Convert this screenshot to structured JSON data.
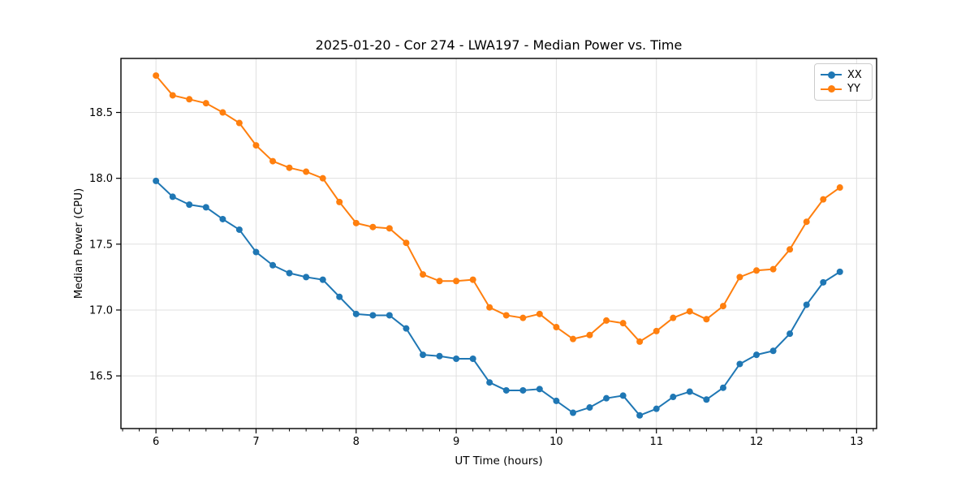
{
  "chart_data": {
    "type": "line",
    "title": "2025-01-20 - Cor 274 - LWA197 - Median Power vs. Time",
    "xlabel": "UT Time (hours)",
    "ylabel": "Median Power (CPU)",
    "xlim": [
      5.65,
      13.2
    ],
    "ylim": [
      16.1,
      18.91
    ],
    "x_ticks": [
      6,
      7,
      8,
      9,
      10,
      11,
      12,
      13
    ],
    "x_tick_labels": [
      "6",
      "7",
      "8",
      "9",
      "10",
      "11",
      "12",
      "13"
    ],
    "y_ticks": [
      16.5,
      17.0,
      17.5,
      18.0,
      18.5
    ],
    "y_tick_labels": [
      "16.5",
      "17.0",
      "17.5",
      "18.0",
      "18.5"
    ],
    "x_minor_step": 0.166667,
    "grid": true,
    "grid_color": "#e0e0e0",
    "legend_position": "upper right",
    "x": [
      6.0,
      6.167,
      6.333,
      6.5,
      6.667,
      6.833,
      7.0,
      7.167,
      7.333,
      7.5,
      7.667,
      7.833,
      8.0,
      8.167,
      8.333,
      8.5,
      8.667,
      8.833,
      9.0,
      9.167,
      9.333,
      9.5,
      9.667,
      9.833,
      10.0,
      10.167,
      10.333,
      10.5,
      10.667,
      10.833,
      11.0,
      11.167,
      11.333,
      11.5,
      11.667,
      11.833,
      12.0,
      12.167,
      12.333,
      12.5,
      12.667,
      12.833
    ],
    "series": [
      {
        "name": "XX",
        "color": "#1f77b4",
        "values": [
          17.98,
          17.86,
          17.8,
          17.78,
          17.69,
          17.61,
          17.44,
          17.34,
          17.28,
          17.25,
          17.23,
          17.1,
          16.97,
          16.96,
          16.96,
          16.86,
          16.66,
          16.65,
          16.63,
          16.63,
          16.45,
          16.39,
          16.39,
          16.4,
          16.31,
          16.22,
          16.26,
          16.33,
          16.35,
          16.2,
          16.25,
          16.34,
          16.38,
          16.32,
          16.41,
          16.59,
          16.66,
          16.69,
          16.82,
          17.04,
          17.21,
          17.29
        ]
      },
      {
        "name": "YY",
        "color": "#ff7f0e",
        "values": [
          18.78,
          18.63,
          18.6,
          18.57,
          18.5,
          18.42,
          18.25,
          18.13,
          18.08,
          18.05,
          18.0,
          17.82,
          17.66,
          17.63,
          17.62,
          17.51,
          17.27,
          17.22,
          17.22,
          17.23,
          17.02,
          16.96,
          16.94,
          16.97,
          16.87,
          16.78,
          16.81,
          16.92,
          16.9,
          16.76,
          16.84,
          16.94,
          16.99,
          16.93,
          17.03,
          17.25,
          17.3,
          17.31,
          17.46,
          17.67,
          17.84,
          17.93
        ]
      }
    ]
  }
}
